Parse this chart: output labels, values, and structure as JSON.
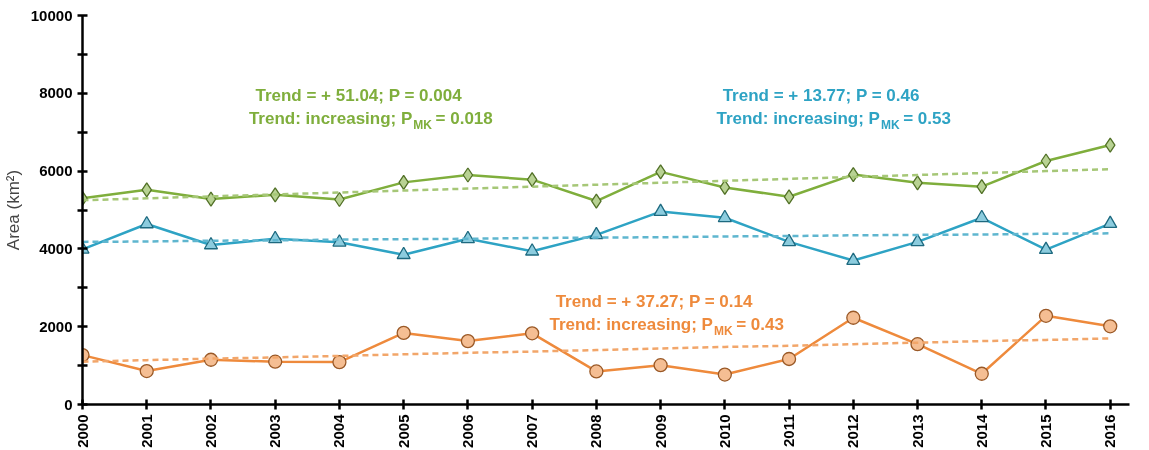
{
  "chart_data": {
    "type": "line",
    "ylabel": "Area (km²)",
    "x": [
      2000,
      2001,
      2002,
      2003,
      2004,
      2005,
      2006,
      2007,
      2008,
      2009,
      2010,
      2011,
      2012,
      2013,
      2014,
      2015,
      2016
    ],
    "xlim": [
      2000,
      2016.3
    ],
    "xticks": [
      2000,
      2001,
      2002,
      2003,
      2004,
      2005,
      2006,
      2007,
      2008,
      2009,
      2010,
      2011,
      2012,
      2013,
      2014,
      2015,
      2016
    ],
    "ylim": [
      0,
      10000
    ],
    "yticks": [
      0,
      {
        "value": 1000,
        "label": null
      },
      2000,
      {
        "value": 3000,
        "label": null
      },
      4000,
      {
        "value": 5000,
        "label": null
      },
      6000,
      {
        "value": 7000,
        "label": null
      },
      8000,
      {
        "value": 9000,
        "label": null
      },
      10000
    ],
    "grid": false,
    "series": [
      {
        "color": "#7fae3c",
        "marker": "diamond",
        "values": [
          5300,
          5520,
          5280,
          5390,
          5270,
          5710,
          5900,
          5780,
          5230,
          5980,
          5580,
          5340,
          5910,
          5700,
          5600,
          6260,
          6670
        ]
      },
      {
        "color": "#2ea3c4",
        "marker": "triangle",
        "values": [
          3990,
          4640,
          4100,
          4260,
          4170,
          3850,
          4260,
          3940,
          4360,
          4960,
          4800,
          4180,
          3700,
          4180,
          4800,
          3980,
          4650
        ]
      },
      {
        "color": "#ee8a3c",
        "marker": "circle",
        "values": [
          1270,
          860,
          1150,
          1100,
          1090,
          1840,
          1630,
          1830,
          850,
          1010,
          770,
          1170,
          2230,
          1550,
          790,
          2280,
          2010
        ]
      },
      {
        "color": "#a6c777",
        "marker": "none",
        "line_style": "dashed",
        "values": [
          5250,
          5300,
          5350,
          5400,
          5450,
          5500,
          5550,
          5600,
          5650,
          5700,
          5750,
          5800,
          5850,
          5900,
          5950,
          6000,
          6050
        ]
      },
      {
        "color": "#5fb6cf",
        "marker": "none",
        "line_style": "dashed",
        "values": [
          4180,
          4190,
          4210,
          4220,
          4240,
          4250,
          4260,
          4280,
          4290,
          4300,
          4320,
          4330,
          4350,
          4360,
          4370,
          4390,
          4400
        ]
      },
      {
        "color": "#f2a66a",
        "marker": "none",
        "line_style": "dashed",
        "values": [
          1100,
          1140,
          1180,
          1210,
          1250,
          1290,
          1330,
          1360,
          1400,
          1440,
          1480,
          1510,
          1550,
          1590,
          1630,
          1660,
          1700
        ]
      }
    ],
    "annotations": [
      "Trend = + 51.04; P = 0.004",
      "Trend: increasing; P$_{MK}$ = 0.018",
      "Trend = + 13.77; P = 0.46",
      "Trend: increasing; P$_{MK}$ = 0.53",
      "Trend = + 37.27; P = 0.14",
      "Trend: increasing; P$_{MK}$ = 0.43"
    ]
  }
}
